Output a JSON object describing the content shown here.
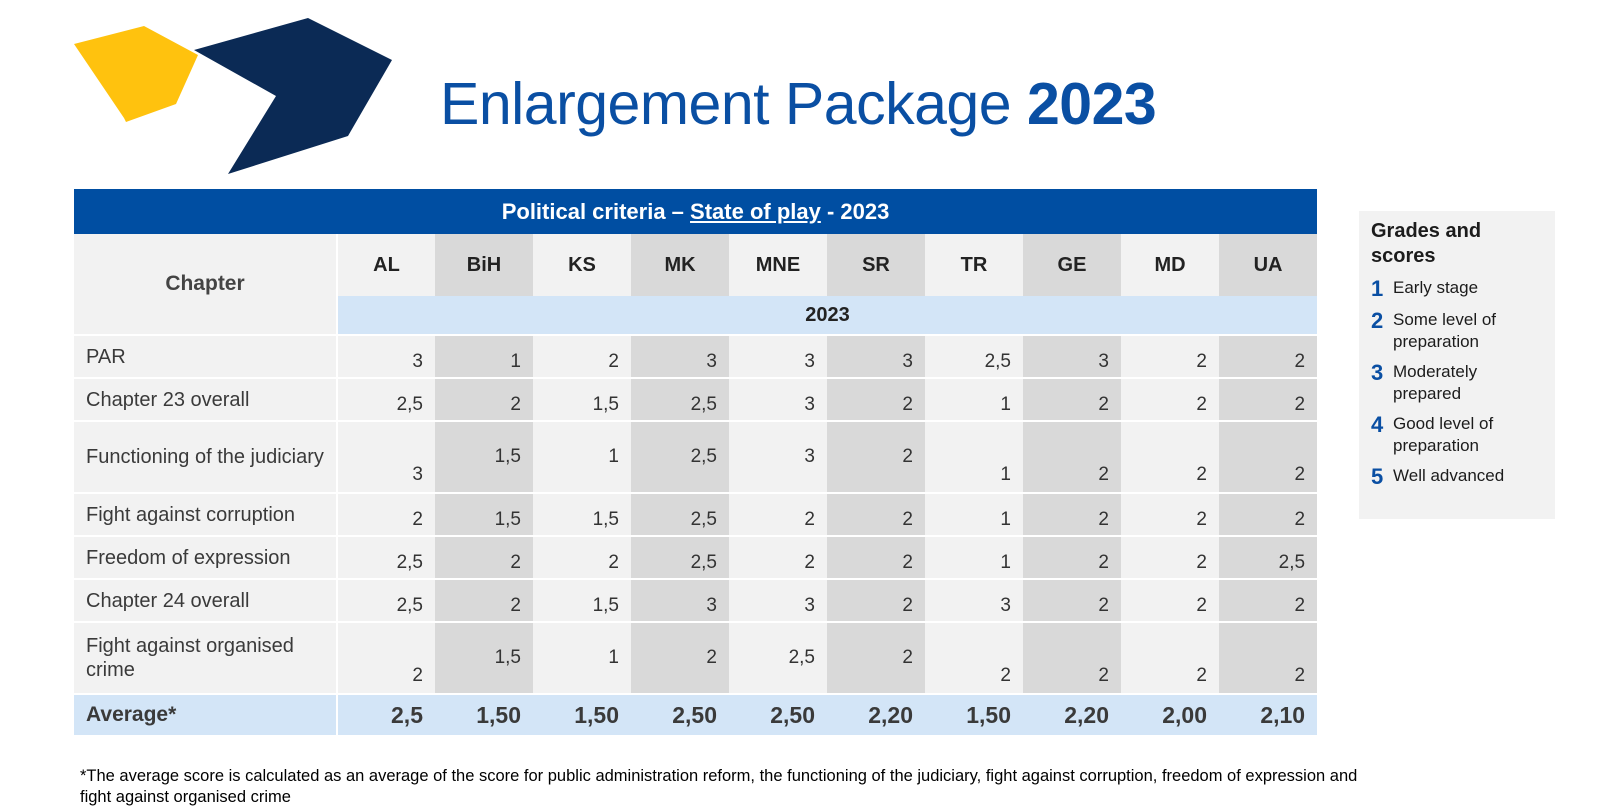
{
  "header": {
    "title_text": "Enlargement Package",
    "title_year": "2023"
  },
  "table": {
    "caption_prefix": "Political  criteria –",
    "caption_underlined": "State of play",
    "caption_suffix": "- 2023",
    "chapter_header": "Chapter",
    "year_label": "2023",
    "columns": [
      "AL",
      "BiH",
      "KS",
      "MK",
      "MNE",
      "SR",
      "TR",
      "GE",
      "MD",
      "UA"
    ],
    "rows": [
      {
        "label": "PAR",
        "values": [
          "3",
          "1",
          "2",
          "3",
          "3",
          "3",
          "2,5",
          "3",
          "2",
          "2"
        ]
      },
      {
        "label": "Chapter 23 overall",
        "values": [
          "2,5",
          "2",
          "1,5",
          "2,5",
          "3",
          "2",
          "1",
          "2",
          "2",
          "2"
        ]
      },
      {
        "label": "Functioning of the judiciary",
        "values": [
          "3",
          "1,5",
          "1",
          "2,5",
          "3",
          "2",
          "1",
          "2",
          "2",
          "2"
        ]
      },
      {
        "label": "Fight against corruption",
        "values": [
          "2",
          "1,5",
          "1,5",
          "2,5",
          "2",
          "2",
          "1",
          "2",
          "2",
          "2"
        ]
      },
      {
        "label": "Freedom of expression",
        "values": [
          "2,5",
          "2",
          "2",
          "2,5",
          "2",
          "2",
          "1",
          "2",
          "2",
          "2,5"
        ]
      },
      {
        "label": "Chapter 24 overall",
        "values": [
          "2,5",
          "2",
          "1,5",
          "3",
          "3",
          "2",
          "3",
          "2",
          "2",
          "2"
        ]
      },
      {
        "label": "Fight against organised crime",
        "values": [
          "2",
          "1,5",
          "1",
          "2",
          "2,5",
          "2",
          "2",
          "2",
          "2",
          "2"
        ]
      }
    ],
    "average": {
      "label": "Average*",
      "values": [
        "2,5",
        "1,50",
        "1,50",
        "2,50",
        "2,50",
        "2,20",
        "1,50",
        "2,20",
        "2,00",
        "2,10"
      ]
    }
  },
  "legend": {
    "title": "Grades and scores",
    "items": [
      {
        "num": "1",
        "label": "Early stage"
      },
      {
        "num": "2",
        "label": "Some level of preparation"
      },
      {
        "num": "3",
        "label": "Moderately prepared"
      },
      {
        "num": "4",
        "label": "Good level of preparation"
      },
      {
        "num": "5",
        "label": "Well advanced"
      }
    ]
  },
  "footnote": "*The average score is calculated as an average of the score for public administration reform, the functioning of the judiciary, fight against corruption, freedom of expression and fight against organised crime",
  "colors": {
    "brand_blue": "#004ea2",
    "title_blue": "#0a4fa3",
    "logo_yellow": "#ffc20e",
    "logo_navy": "#0b2a55",
    "light_blue": "#d3e5f7"
  }
}
